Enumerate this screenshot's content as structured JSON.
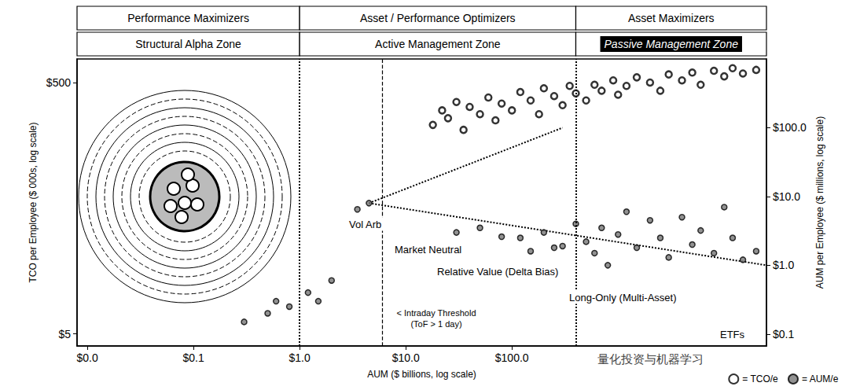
{
  "chart_data": {
    "type": "scatter",
    "x_label": "AUM ($ billions, log scale)",
    "y_label": "TCO per Employee ($ 000s, log scale)",
    "y2_label": "AUM per Employee ($ millions, log scale)",
    "log": true,
    "grid": false,
    "legend": "lower right",
    "xlim": [
      0.008,
      25000
    ],
    "xticks": [
      {
        "value": 0.01,
        "label": "$0.0"
      },
      {
        "value": 0.1,
        "label": "$0.1"
      },
      {
        "value": 1,
        "label": "$1.0"
      },
      {
        "value": 10,
        "label": "$10.0"
      },
      {
        "value": 100,
        "label": "$100.0"
      }
    ],
    "ylim": [
      4,
      770
    ],
    "yticks": [
      {
        "value": 5,
        "label": "$5"
      },
      {
        "value": 500,
        "label": "$500"
      }
    ],
    "y2lim": [
      0.067,
      1000
    ],
    "y2ticks": [
      {
        "value": 0.1,
        "label": "$0.1"
      },
      {
        "value": 1,
        "label": "$1.0"
      },
      {
        "value": 10,
        "label": "$10.0"
      },
      {
        "value": 100,
        "label": "$100.0"
      }
    ],
    "zones": [
      {
        "header": "Performance Maximizers",
        "label": "Structural Alpha Zone"
      },
      {
        "header": "Asset / Performance Optimizers",
        "label": "Active Management Zone"
      },
      {
        "header": "Asset Maximizers",
        "label": "Passive Management Zone"
      }
    ],
    "zone_bounds": [
      1,
      400
    ],
    "threshold": {
      "x": 6,
      "label": "< Intraday Threshold\n(ToF > 1 day)"
    },
    "annotations": [
      "Vol Arb",
      "Market Neutral",
      "Relative Value (Delta Bias)",
      "Long-Only (Multi-Asset)",
      "ETFs"
    ],
    "watermark": "量化投资与机器学习",
    "series": [
      {
        "name": "= TCO/e",
        "axis": "y",
        "color": "#000000",
        "marker": "ring",
        "x": [
          18,
          22,
          25,
          30,
          35,
          40,
          50,
          60,
          70,
          80,
          100,
          120,
          150,
          180,
          200,
          250,
          300,
          350,
          400,
          500,
          600,
          700,
          900,
          1000,
          1200,
          1500,
          2000,
          2500,
          3000,
          4000,
          5000,
          6000,
          8000,
          10000,
          12000,
          15000,
          20000
        ],
        "y": [
          230,
          300,
          260,
          350,
          210,
          320,
          280,
          380,
          250,
          340,
          300,
          420,
          360,
          280,
          450,
          390,
          330,
          470,
          410,
          360,
          480,
          430,
          520,
          400,
          470,
          550,
          500,
          430,
          580,
          520,
          600,
          480,
          620,
          560,
          650,
          590,
          630
        ]
      },
      {
        "name": "= AUM/e",
        "axis": "y2",
        "color": "#000000",
        "marker": "circle",
        "x": [
          0.3,
          0.5,
          0.6,
          0.8,
          1.2,
          1.5,
          2,
          3.5,
          4.5,
          30,
          50,
          80,
          120,
          150,
          200,
          250,
          300,
          400,
          500,
          600,
          700,
          800,
          1000,
          1200,
          1500,
          2000,
          2500,
          3000,
          4000,
          5000,
          6000,
          8000,
          10000,
          12000,
          15000,
          20000
        ],
        "y": [
          0.15,
          0.2,
          0.3,
          0.25,
          0.4,
          0.3,
          0.6,
          6.5,
          8,
          3,
          3.5,
          2.6,
          2.5,
          1.6,
          3,
          1.8,
          1.9,
          4,
          2.2,
          1.5,
          3.5,
          1.0,
          2.8,
          6,
          1.8,
          4.5,
          2.5,
          1.3,
          5,
          2,
          3.2,
          1.5,
          7,
          2.5,
          1.2,
          1.6
        ]
      }
    ],
    "trend_lines": [
      {
        "axis": "y2",
        "line_style": "dotted",
        "x": [
          4.5,
          25000
        ],
        "y": [
          8,
          1.0
        ]
      },
      {
        "axis": "y2",
        "line_style": "dotted",
        "x": [
          4.5,
          300
        ],
        "y": [
          8,
          100
        ]
      }
    ]
  }
}
